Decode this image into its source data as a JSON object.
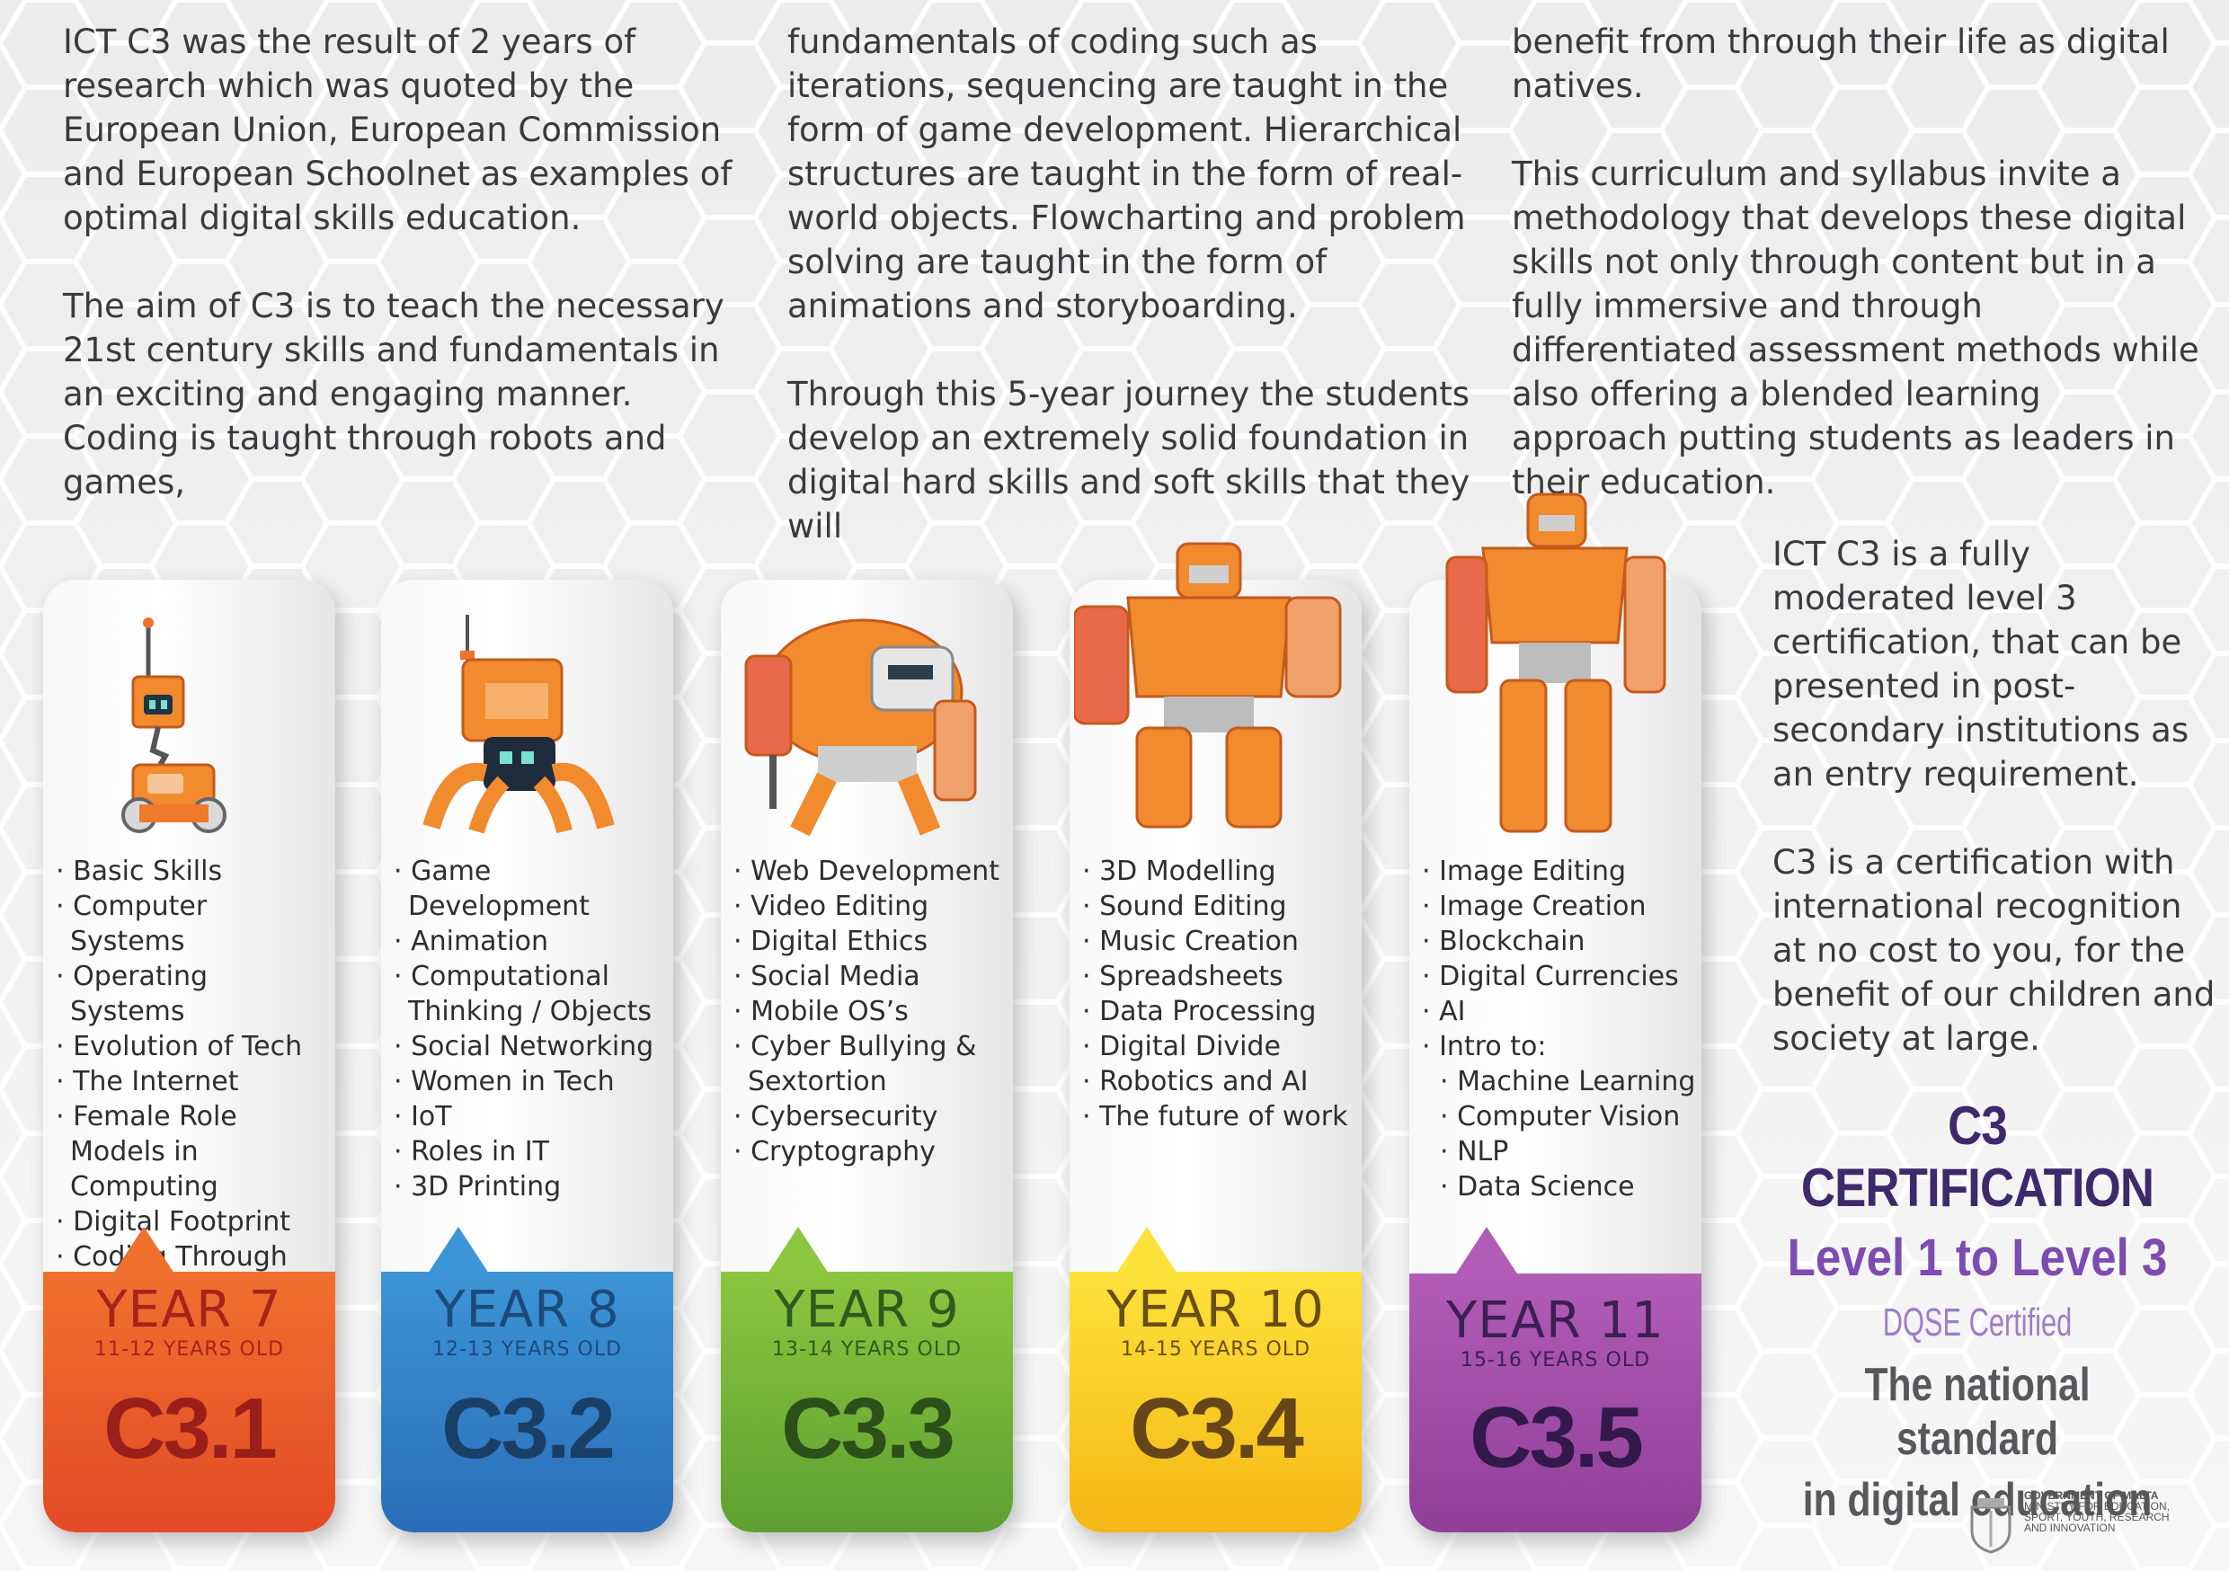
{
  "intro": {
    "col1": [
      "ICT C3 was the result of 2 years of research which was quoted by the European Union, European Commission and European Schoolnet as examples of optimal digital skills education.",
      "The aim of C3 is to teach the necessary 21st century skills and fundamentals in an exciting and engaging manner. Coding is taught through robots and games,"
    ],
    "col2": [
      "fundamentals of coding such as iterations, sequencing are taught in the form of game development. Hierarchical structures are taught in the form of real-world objects. Flowcharting and problem solving are taught in the form of animations and storyboarding.",
      "Through this 5-year journey the students develop an extremely solid foundation in digital hard skills and soft skills that they will"
    ],
    "col3": [
      "benefit from through their life as digital natives.",
      "This curriculum and syllabus invite a methodology that develops these digital skills not only through content but in a fully immersive and through differentiated assessment methods while also offering a blended learning approach putting students as leaders in their education."
    ]
  },
  "side": {
    "p1": "ICT C3 is a fully moderated level 3 certification, that can be presented in post-secondary institutions as an entry requirement.",
    "p2": "C3 is a certification with international recognition at no cost to you, for the benefit of our children and society at large."
  },
  "certification": {
    "title": "C3 CERTIFICATION",
    "levels": "Level 1 to Level 3",
    "dqse": "DQSE Certified",
    "standard_line1": "The national standard",
    "standard_line2": "in digital education"
  },
  "cards": [
    {
      "year": "YEAR 7",
      "ages": "11-12 YEARS OLD",
      "code": "C3.1",
      "color": "#e8532a",
      "topics": [
        "Basic Skills",
        "Computer Systems",
        "Operating Systems",
        "Evolution of Tech",
        "The Internet",
        "Female Role Models in Computing",
        "Digital Footprint",
        "Coding Through Robotics"
      ]
    },
    {
      "year": "YEAR 8",
      "ages": "12-13 YEARS OLD",
      "code": "C3.2",
      "color": "#2f7dc4",
      "topics": [
        "Game Development",
        "Animation",
        "Computational Thinking / Objects",
        "Social Networking",
        "Women in Tech",
        "IoT",
        "Roles in IT",
        "3D Printing"
      ]
    },
    {
      "year": "YEAR 9",
      "ages": "13-14 YEARS OLD",
      "code": "C3.3",
      "color": "#6aad37",
      "topics": [
        "Web Development",
        "Video Editing",
        "Digital Ethics",
        "Social Media",
        "Mobile OS’s",
        "Cyber Bullying & Sextortion",
        "Cybersecurity",
        "Cryptography"
      ]
    },
    {
      "year": "YEAR 10",
      "ages": "14-15 YEARS OLD",
      "code": "C3.4",
      "color": "#f7c416",
      "topics": [
        "3D Modelling",
        "Sound Editing",
        "Music Creation",
        "Spreadsheets",
        "Data Processing",
        "Digital Divide",
        "Robotics and AI",
        "The future of work"
      ]
    },
    {
      "year": "YEAR 11",
      "ages": "15-16 YEARS OLD",
      "code": "C3.5",
      "color": "#a14da8",
      "topics": [
        "Image Editing",
        "Image Creation",
        "Blockchain",
        "Digital Currencies",
        "AI",
        "Intro to:"
      ],
      "subtopics": [
        "Machine Learning",
        "Computer Vision",
        "NLP",
        "Data Science"
      ]
    }
  ],
  "footer": {
    "org_line1": "GOVERNMENT OF MALTA",
    "org_line2": "MINISTRY FOR EDUCATION,",
    "org_line3": "SPORT, YOUTH, RESEARCH",
    "org_line4": "AND INNOVATION"
  },
  "icons": [
    "robot-icon",
    "government-emblem-icon"
  ]
}
